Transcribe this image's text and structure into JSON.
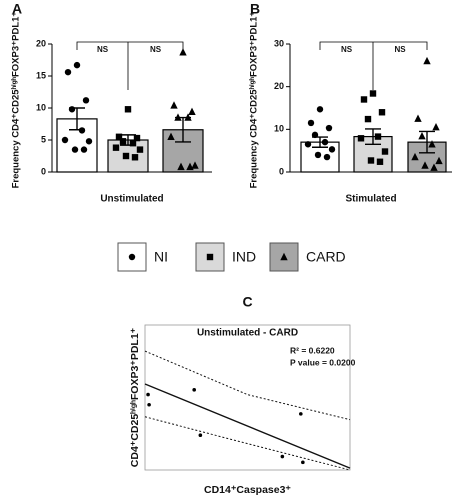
{
  "chart_data": [
    {
      "type": "bar",
      "panel_label": "A",
      "y_label": "Frequency CD4⁺CD25ʰⁱᵍʰFOXP3⁺PDL1⁺",
      "x_label": "Unstimulated",
      "categories": [
        "NI",
        "IND",
        "CARD"
      ],
      "colors": [
        "#ffffff",
        "#d9d9d9",
        "#a6a6a6"
      ],
      "markers": [
        "circle",
        "square",
        "triangle"
      ],
      "values": [
        8.3,
        5.0,
        6.6
      ],
      "errors": [
        1.7,
        0.8,
        1.9
      ],
      "points": [
        [
          16.7,
          15.6,
          11.2,
          9.8,
          6.5,
          5.0,
          4.8,
          3.5,
          3.5
        ],
        [
          9.8,
          5.5,
          5.3,
          4.8,
          4.5,
          3.8,
          3.5,
          2.5,
          2.3
        ],
        [
          18.7,
          10.4,
          9.4,
          8.5,
          8.5,
          5.5,
          1.0,
          0.8,
          0.8
        ]
      ],
      "annotations": [
        "NS",
        "NS"
      ],
      "ylim": [
        0,
        20
      ],
      "yticks": [
        0,
        5,
        10,
        15,
        20
      ]
    },
    {
      "type": "bar",
      "panel_label": "B",
      "y_label": "Frequency CD4⁺CD25ʰⁱᵍʰFOXP3⁺PDL1⁺",
      "x_label": "Stimulated",
      "categories": [
        "NI",
        "IND",
        "CARD"
      ],
      "colors": [
        "#ffffff",
        "#d9d9d9",
        "#a6a6a6"
      ],
      "markers": [
        "circle",
        "square",
        "triangle"
      ],
      "values": [
        7.0,
        8.3,
        7.0
      ],
      "errors": [
        1.2,
        1.8,
        2.5
      ],
      "points": [
        [
          14.7,
          11.5,
          10.3,
          8.7,
          7.0,
          6.5,
          5.3,
          4.0,
          3.5
        ],
        [
          18.4,
          17.0,
          14.0,
          12.4,
          8.3,
          7.9,
          4.8,
          2.7,
          2.4
        ],
        [
          26.0,
          12.5,
          10.5,
          8.4,
          6.5,
          3.5,
          2.6,
          1.5,
          1.0
        ]
      ],
      "annotations": [
        "NS",
        "NS"
      ],
      "ylim": [
        0,
        30
      ],
      "yticks": [
        0,
        10,
        20,
        30
      ]
    },
    {
      "type": "scatter",
      "panel_label": "C",
      "title": "Unstimulated - CARD",
      "y_label": "CD4⁺CD25ʰⁱᵍʰFOXP3⁺PDL1⁺",
      "x_label": "CD14⁺Caspase3⁺",
      "annotations": [
        "R² = 0.6220",
        "P value = 0.0200"
      ],
      "x": [
        1.5,
        2,
        24,
        27,
        76,
        67,
        77
      ],
      "y": [
        52,
        45,
        55.3,
        24,
        38.7,
        9.3,
        5.3
      ],
      "fit": {
        "x": [
          0,
          100
        ],
        "y": [
          59.3,
          1.3
        ]
      },
      "ci_upper": {
        "x": [
          0,
          50,
          100
        ],
        "y": [
          82,
          52,
          34.7
        ]
      },
      "ci_lower": {
        "x": [
          0,
          45,
          100
        ],
        "y": [
          36.7,
          20,
          0
        ]
      },
      "xlim": [
        0,
        100
      ],
      "ylim": [
        0,
        100
      ]
    }
  ]
}
